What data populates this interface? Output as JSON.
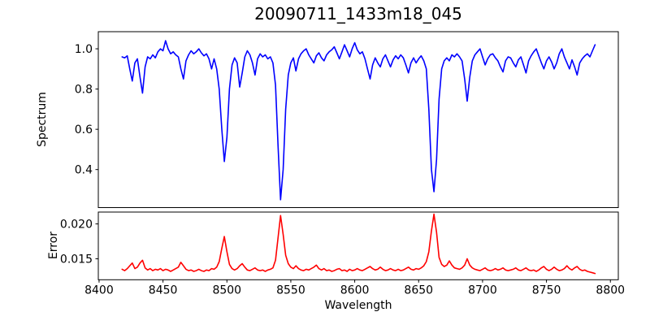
{
  "title": "20090711_1433m18_045",
  "chart_data": {
    "type": "line",
    "title": "20090711_1433m18_045",
    "xlabel": "Wavelength",
    "grid": false,
    "legend": "none",
    "xlim": [
      8399.4,
      8806.2
    ],
    "xticks": [
      8400,
      8450,
      8500,
      8550,
      8600,
      8650,
      8700,
      8750,
      8800
    ],
    "xtick_labels": [
      "8400",
      "8450",
      "8500",
      "8550",
      "8600",
      "8650",
      "8700",
      "8750",
      "8800"
    ],
    "subplots": [
      {
        "name": "spectrum",
        "ylabel": "Spectrum",
        "ylim": [
          0.211,
          1.085
        ],
        "yticks": [
          0.4,
          0.6,
          0.8,
          1.0
        ],
        "ytick_labels": [
          "0.4",
          "0.6",
          "0.8",
          "1.0"
        ],
        "line_color": "#0000ff",
        "series": [
          {
            "name": "spectrum",
            "color": "#0000ff",
            "x_start": 8418,
            "x_step": 2,
            "y": [
              0.96,
              0.955,
              0.965,
              0.9,
              0.84,
              0.93,
              0.95,
              0.86,
              0.78,
              0.91,
              0.96,
              0.95,
              0.97,
              0.955,
              0.985,
              1.0,
              0.99,
              1.04,
              1.0,
              0.975,
              0.985,
              0.97,
              0.96,
              0.9,
              0.85,
              0.94,
              0.97,
              0.99,
              0.975,
              0.985,
              1.0,
              0.98,
              0.965,
              0.975,
              0.95,
              0.9,
              0.95,
              0.9,
              0.8,
              0.6,
              0.44,
              0.56,
              0.8,
              0.92,
              0.955,
              0.93,
              0.81,
              0.88,
              0.96,
              0.99,
              0.97,
              0.93,
              0.87,
              0.95,
              0.975,
              0.96,
              0.97,
              0.95,
              0.96,
              0.93,
              0.82,
              0.52,
              0.25,
              0.4,
              0.7,
              0.87,
              0.93,
              0.955,
              0.89,
              0.95,
              0.975,
              0.99,
              1.0,
              0.97,
              0.95,
              0.93,
              0.965,
              0.98,
              0.955,
              0.94,
              0.97,
              0.985,
              0.995,
              1.01,
              0.98,
              0.95,
              0.985,
              1.02,
              0.99,
              0.96,
              1.0,
              1.03,
              0.995,
              0.975,
              0.985,
              0.95,
              0.9,
              0.85,
              0.92,
              0.955,
              0.93,
              0.91,
              0.95,
              0.97,
              0.94,
              0.91,
              0.945,
              0.965,
              0.95,
              0.97,
              0.955,
              0.92,
              0.88,
              0.93,
              0.955,
              0.93,
              0.95,
              0.965,
              0.94,
              0.9,
              0.7,
              0.4,
              0.29,
              0.45,
              0.75,
              0.9,
              0.94,
              0.955,
              0.94,
              0.97,
              0.96,
              0.975,
              0.96,
              0.94,
              0.85,
              0.74,
              0.86,
              0.94,
              0.97,
              0.985,
              1.0,
              0.96,
              0.92,
              0.95,
              0.97,
              0.975,
              0.955,
              0.94,
              0.91,
              0.885,
              0.94,
              0.96,
              0.955,
              0.93,
              0.91,
              0.945,
              0.96,
              0.92,
              0.88,
              0.94,
              0.965,
              0.985,
              1.0,
              0.965,
              0.93,
              0.9,
              0.94,
              0.96,
              0.935,
              0.9,
              0.93,
              0.975,
              1.0,
              0.96,
              0.93,
              0.9,
              0.945,
              0.91,
              0.87,
              0.93,
              0.95,
              0.965,
              0.975,
              0.96,
              0.99,
              1.02
            ]
          }
        ]
      },
      {
        "name": "error",
        "ylabel": "Error",
        "ylim": [
          0.012,
          0.0217
        ],
        "yticks": [
          0.015,
          0.02
        ],
        "ytick_labels": [
          "0.015",
          "0.020"
        ],
        "line_color": "#ff0000",
        "series": [
          {
            "name": "error",
            "color": "#ff0000",
            "x_start": 8418,
            "x_step": 2,
            "y": [
              0.0135,
              0.0133,
              0.0136,
              0.014,
              0.0144,
              0.0136,
              0.0138,
              0.0144,
              0.0148,
              0.0137,
              0.0134,
              0.0136,
              0.0133,
              0.0135,
              0.0134,
              0.0136,
              0.0133,
              0.0135,
              0.0134,
              0.0132,
              0.0134,
              0.0136,
              0.0138,
              0.0145,
              0.014,
              0.0135,
              0.0133,
              0.0134,
              0.0132,
              0.0133,
              0.0135,
              0.0133,
              0.0132,
              0.0134,
              0.0133,
              0.0136,
              0.0135,
              0.0138,
              0.0146,
              0.0165,
              0.0182,
              0.016,
              0.0142,
              0.0136,
              0.0134,
              0.0136,
              0.014,
              0.0143,
              0.0138,
              0.0134,
              0.0133,
              0.0135,
              0.0137,
              0.0134,
              0.0133,
              0.0134,
              0.0132,
              0.0134,
              0.0135,
              0.0137,
              0.0148,
              0.018,
              0.0212,
              0.0185,
              0.0155,
              0.0143,
              0.0138,
              0.0136,
              0.014,
              0.0136,
              0.0134,
              0.0133,
              0.0135,
              0.0134,
              0.0136,
              0.0138,
              0.0141,
              0.0136,
              0.0134,
              0.0136,
              0.0133,
              0.0134,
              0.0132,
              0.0133,
              0.0135,
              0.0136,
              0.0133,
              0.0134,
              0.0132,
              0.0135,
              0.0133,
              0.0134,
              0.0136,
              0.0134,
              0.0133,
              0.0135,
              0.0137,
              0.0139,
              0.0136,
              0.0134,
              0.0135,
              0.0138,
              0.0135,
              0.0133,
              0.0134,
              0.0136,
              0.0134,
              0.0133,
              0.0135,
              0.0133,
              0.0134,
              0.0136,
              0.0138,
              0.0135,
              0.0134,
              0.0136,
              0.0135,
              0.0137,
              0.014,
              0.0146,
              0.016,
              0.019,
              0.0214,
              0.0188,
              0.0152,
              0.0142,
              0.0139,
              0.0141,
              0.0147,
              0.0141,
              0.0137,
              0.0136,
              0.0135,
              0.0137,
              0.0141,
              0.015,
              0.0141,
              0.0137,
              0.0135,
              0.0134,
              0.0133,
              0.0135,
              0.0137,
              0.0134,
              0.0133,
              0.0134,
              0.0136,
              0.0134,
              0.0135,
              0.0137,
              0.0134,
              0.0133,
              0.0134,
              0.0135,
              0.0137,
              0.0134,
              0.0133,
              0.0135,
              0.0137,
              0.0134,
              0.0133,
              0.0134,
              0.0132,
              0.0134,
              0.0137,
              0.0139,
              0.0135,
              0.0133,
              0.0135,
              0.0138,
              0.0135,
              0.0133,
              0.0134,
              0.0136,
              0.014,
              0.0136,
              0.0134,
              0.0137,
              0.0139,
              0.0135,
              0.0133,
              0.0134,
              0.0132,
              0.0131,
              0.013,
              0.0129
            ]
          }
        ]
      }
    ]
  }
}
